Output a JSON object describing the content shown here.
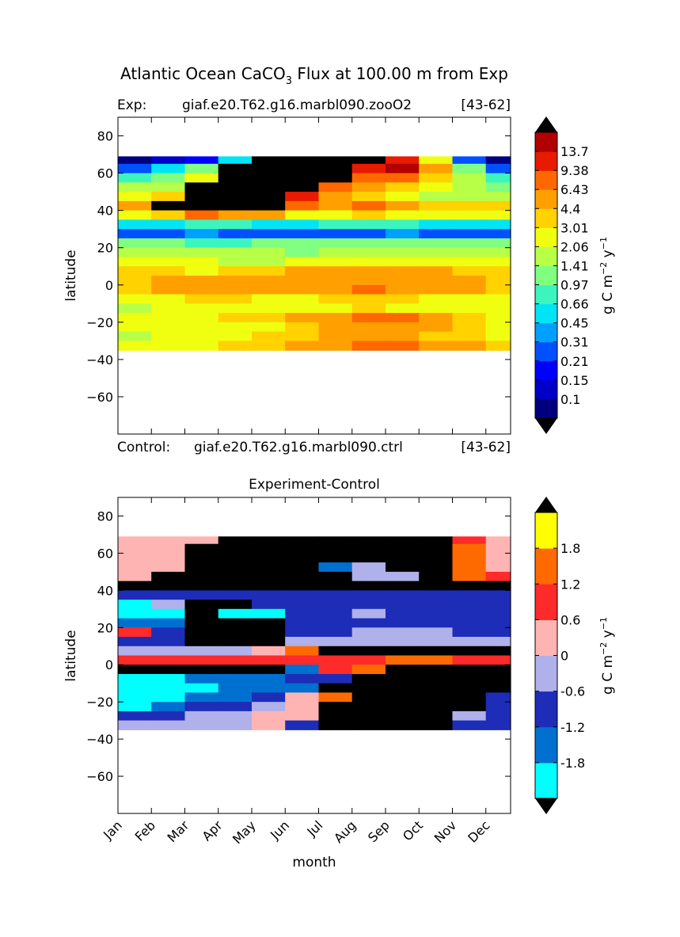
{
  "figure": {
    "title_prefix": "Atlantic Ocean CaCO",
    "title_sub": "3",
    "title_suffix": " Flux at 100.00 m from Exp"
  },
  "colors": {
    "land_mask": "#000000",
    "frame": "#000000",
    "top_scale": [
      "#00007f",
      "#0000c8",
      "#0000ff",
      "#0050ff",
      "#00a0ff",
      "#00e5f5",
      "#3cf5be",
      "#80ff80",
      "#b8ff48",
      "#f0ff10",
      "#ffd200",
      "#ffa000",
      "#ff6800",
      "#e81a00",
      "#b20000",
      "#7f0000"
    ],
    "diff_scale": [
      "#00ffff",
      "#0070d0",
      "#1d2db8",
      "#b0b0ea",
      "#ffb4b4",
      "#ff2a2a",
      "#ff6a00",
      "#ffff00"
    ]
  },
  "panel_top": {
    "left_label": "Exp:",
    "case_label": "giaf.e20.T62.g16.marbl090.zooO2",
    "years_label": "[43-62]",
    "ylabel": "latitude"
  },
  "panel_bottom": {
    "control_prefix": "Control:",
    "case_label": "giaf.e20.T62.g16.marbl090.ctrl",
    "years_label": "[43-62]",
    "title": "Experiment-Control",
    "ylabel": "latitude",
    "xlabel": "month"
  },
  "colorbar_top": {
    "unit_label": "g C m",
    "unit_exp1": "−2",
    "unit_mid": " y",
    "unit_exp2": "−1"
  },
  "colorbar_bottom": {
    "unit_label": "g C m",
    "unit_exp1": "−2",
    "unit_mid": " y",
    "unit_exp2": "−1"
  },
  "chart_data": [
    {
      "type": "heatmap",
      "title": "giaf.e20.T62.g16.marbl090.zooO2 [43-62]",
      "xlabel": "",
      "ylabel": "latitude",
      "x": [
        "Jan",
        "Feb",
        "Mar",
        "Apr",
        "May",
        "Jun",
        "Jul",
        "Aug",
        "Sep",
        "Oct",
        "Nov",
        "Dec"
      ],
      "ylim": [
        -80,
        90
      ],
      "yticks": [
        80,
        60,
        40,
        20,
        0,
        -20,
        -40,
        -60
      ],
      "data_lat_range": [
        -35,
        69
      ],
      "levels": [
        "0.1",
        "0.15",
        "0.21",
        "0.31",
        "0.45",
        "0.66",
        "0.97",
        "1.41",
        "2.06",
        "3.01",
        "4.4",
        "6.43",
        "9.38",
        "13.7"
      ],
      "colorbar_extend": "both",
      "bands": [
        {
          "lat": [
            65,
            69
          ],
          "values": [
            0.08,
            0.1,
            0.2,
            0.6,
            20,
            20,
            20,
            20,
            10,
            3,
            0.3,
            0.08
          ]
        },
        {
          "lat": [
            60,
            65
          ],
          "values": [
            0.3,
            0.6,
            1.2,
            20,
            20,
            20,
            20,
            12,
            14,
            5,
            1,
            0.3
          ]
        },
        {
          "lat": [
            55,
            60
          ],
          "values": [
            0.8,
            1.2,
            3,
            20,
            20,
            20,
            20,
            8,
            9,
            4,
            1.5,
            0.7
          ]
        },
        {
          "lat": [
            50,
            55
          ],
          "values": [
            1.5,
            2,
            20,
            20,
            20,
            20,
            9,
            6,
            4,
            2.5,
            1.5,
            1.2
          ]
        },
        {
          "lat": [
            45,
            50
          ],
          "values": [
            2.5,
            4,
            20,
            20,
            20,
            12,
            6,
            4,
            3,
            2,
            2,
            2
          ]
        },
        {
          "lat": [
            40,
            45
          ],
          "values": [
            5,
            20,
            20,
            20,
            20,
            8,
            5,
            7,
            6,
            4,
            4,
            4
          ]
        },
        {
          "lat": [
            35,
            40
          ],
          "values": [
            2.5,
            4,
            8,
            6,
            5,
            3,
            3,
            3.5,
            3,
            3,
            3,
            3
          ]
        },
        {
          "lat": [
            30,
            35
          ],
          "values": [
            0.6,
            0.6,
            0.7,
            0.7,
            0.6,
            0.6,
            0.7,
            0.7,
            0.7,
            0.6,
            0.6,
            0.6
          ]
        },
        {
          "lat": [
            25,
            30
          ],
          "values": [
            0.3,
            0.3,
            0.35,
            0.3,
            0.3,
            0.3,
            0.3,
            0.3,
            0.35,
            0.3,
            0.3,
            0.3
          ]
        },
        {
          "lat": [
            20,
            25
          ],
          "values": [
            1,
            1,
            0.8,
            0.9,
            1,
            1,
            1.2,
            1.3,
            1,
            1,
            1,
            1.1
          ]
        },
        {
          "lat": [
            15,
            20
          ],
          "values": [
            1.8,
            2,
            1.5,
            1.5,
            1.5,
            1.4,
            1.8,
            2,
            1.8,
            1.6,
            1.5,
            1.6
          ]
        },
        {
          "lat": [
            10,
            15
          ],
          "values": [
            2.5,
            2.8,
            2.2,
            2,
            2,
            2.3,
            2.5,
            2.7,
            2.6,
            2.4,
            2.3,
            2.4
          ]
        },
        {
          "lat": [
            5,
            10
          ],
          "values": [
            3.5,
            3.2,
            3,
            3.5,
            4,
            4.5,
            5,
            5.5,
            5,
            4.5,
            4,
            3.8
          ]
        },
        {
          "lat": [
            0,
            5
          ],
          "values": [
            4,
            4.5,
            5,
            5.5,
            5,
            4.5,
            5,
            5.5,
            5,
            5,
            4.5,
            4
          ]
        },
        {
          "lat": [
            -5,
            0
          ],
          "values": [
            4,
            4.5,
            5,
            5,
            4.5,
            5,
            6,
            7,
            6,
            5,
            4.5,
            4
          ]
        },
        {
          "lat": [
            -10,
            -5
          ],
          "values": [
            2.5,
            3,
            3.5,
            3.5,
            3,
            3,
            3.2,
            3.5,
            3.2,
            3,
            2.8,
            2.6
          ]
        },
        {
          "lat": [
            -15,
            -10
          ],
          "values": [
            2,
            2.2,
            2.5,
            2.5,
            2.2,
            2.5,
            3,
            3.2,
            3,
            2.6,
            2.4,
            2.2
          ]
        },
        {
          "lat": [
            -20,
            -15
          ],
          "values": [
            2.5,
            3,
            3,
            3.5,
            3.5,
            4.5,
            6,
            7,
            6.5,
            5,
            4,
            3
          ]
        },
        {
          "lat": [
            -25,
            -20
          ],
          "values": [
            2.2,
            2.5,
            2.8,
            3,
            3,
            4,
            5,
            5.5,
            5,
            4.5,
            3.5,
            2.8
          ]
        },
        {
          "lat": [
            -30,
            -25
          ],
          "values": [
            2,
            2.2,
            2.5,
            3,
            3.5,
            4,
            4.5,
            5,
            4.5,
            4,
            3.5,
            3
          ]
        },
        {
          "lat": [
            -35,
            -30
          ],
          "values": [
            2.5,
            2.8,
            3,
            3.5,
            4,
            5,
            6,
            7,
            7.5,
            6,
            5,
            4
          ]
        }
      ]
    },
    {
      "type": "heatmap",
      "title": "Experiment-Control",
      "xlabel": "month",
      "ylabel": "latitude",
      "x": [
        "Jan",
        "Feb",
        "Mar",
        "Apr",
        "May",
        "Jun",
        "Jul",
        "Aug",
        "Sep",
        "Oct",
        "Nov",
        "Dec"
      ],
      "ylim": [
        -80,
        90
      ],
      "yticks": [
        80,
        60,
        40,
        20,
        0,
        -20,
        -40,
        -60
      ],
      "data_lat_range": [
        -35,
        69
      ],
      "levels": [
        "-1.8",
        "-1.2",
        "-0.6",
        "0",
        "0.6",
        "1.2",
        "1.8"
      ],
      "colorbar_extend": "both",
      "bands": [
        {
          "lat": [
            65,
            69
          ],
          "values": [
            0.3,
            0.3,
            0.3,
            2.5,
            2.5,
            2.5,
            2.5,
            2.5,
            2.5,
            2.5,
            0.8,
            0.3
          ]
        },
        {
          "lat": [
            60,
            65
          ],
          "values": [
            0.3,
            0.3,
            2.5,
            2.5,
            2.5,
            2.5,
            2.5,
            2.5,
            2.5,
            2.5,
            1.2,
            0.3
          ]
        },
        {
          "lat": [
            55,
            60
          ],
          "values": [
            0.3,
            0.3,
            2.5,
            2.5,
            2.5,
            2.5,
            2.5,
            2.5,
            2.5,
            2.5,
            1.5,
            0.3
          ]
        },
        {
          "lat": [
            50,
            55
          ],
          "values": [
            0.3,
            0.5,
            2.5,
            2.5,
            2.5,
            2.5,
            -1.5,
            -0.3,
            2.5,
            2.5,
            1.5,
            0.4
          ]
        },
        {
          "lat": [
            45,
            50
          ],
          "values": [
            0.3,
            2.5,
            2.5,
            2.5,
            2.5,
            2.5,
            2.5,
            -0.3,
            -0.5,
            2.5,
            1.3,
            0.6
          ]
        },
        {
          "lat": [
            40,
            45
          ],
          "values": [
            2.5,
            2.5,
            2.5,
            2.5,
            2.5,
            2.5,
            2.5,
            2.5,
            2.5,
            2.5,
            2.5,
            2.5
          ]
        },
        {
          "lat": [
            35,
            40
          ],
          "values": [
            -1,
            -1,
            -0.9,
            -0.8,
            -0.8,
            -0.9,
            -1,
            -1,
            -1.1,
            -1,
            -1,
            -1
          ]
        },
        {
          "lat": [
            30,
            35
          ],
          "values": [
            -2.2,
            -0.6,
            2.5,
            2.5,
            -0.8,
            -1,
            -1,
            -0.9,
            -0.8,
            -0.8,
            -0.8,
            -0.7
          ]
        },
        {
          "lat": [
            25,
            30
          ],
          "values": [
            -2.2,
            -2.2,
            2.5,
            -2.2,
            -2.2,
            -0.8,
            -0.8,
            -0.6,
            -0.9,
            -0.8,
            -0.8,
            -0.8
          ]
        },
        {
          "lat": [
            20,
            25
          ],
          "values": [
            -1.5,
            -1.4,
            2.5,
            2.5,
            2.5,
            -0.9,
            -0.9,
            -1,
            -1,
            -1.1,
            -1,
            -1
          ]
        },
        {
          "lat": [
            15,
            20
          ],
          "values": [
            0.8,
            -1.2,
            2.5,
            2.5,
            2.5,
            -0.8,
            -0.7,
            -0.4,
            -0.4,
            -0.6,
            -0.7,
            -0.7
          ]
        },
        {
          "lat": [
            10,
            15
          ],
          "values": [
            -1,
            -1,
            2.5,
            2.5,
            2.5,
            -0.6,
            -0.4,
            -0.4,
            -0.5,
            -0.5,
            -0.6,
            -0.5
          ]
        },
        {
          "lat": [
            5,
            10
          ],
          "values": [
            -0.4,
            -0.4,
            -0.4,
            -0.3,
            0.3,
            1.5,
            2.5,
            2.5,
            2.5,
            2.5,
            2.5,
            2.5
          ]
        },
        {
          "lat": [
            0,
            5
          ],
          "values": [
            0.8,
            0.8,
            0.8,
            0.8,
            0.8,
            0.9,
            1,
            1,
            1.2,
            1.2,
            1.1,
            1
          ]
        },
        {
          "lat": [
            -5,
            0
          ],
          "values": [
            2.5,
            2.5,
            2.5,
            2.5,
            2.5,
            -1.5,
            0.8,
            1.5,
            2.5,
            2.5,
            2.5,
            2.5
          ]
        },
        {
          "lat": [
            -10,
            -5
          ],
          "values": [
            -2.2,
            -2.2,
            -1.4,
            -1.4,
            -1.4,
            -1.2,
            -1.2,
            2.5,
            2.5,
            2.5,
            2.5,
            2.5
          ]
        },
        {
          "lat": [
            -15,
            -10
          ],
          "values": [
            -2.2,
            -2.2,
            -2.2,
            -1.5,
            -1.5,
            -1.3,
            2.5,
            2.5,
            2.5,
            2.5,
            2.5,
            2.5
          ]
        },
        {
          "lat": [
            -20,
            -15
          ],
          "values": [
            -2.2,
            -2.2,
            -1.5,
            -1.5,
            -0.9,
            0.5,
            1.5,
            2.5,
            2.5,
            2.5,
            2.5,
            -0.9
          ]
        },
        {
          "lat": [
            -25,
            -20
          ],
          "values": [
            -2.2,
            -1.5,
            -1.1,
            -0.9,
            -0.5,
            0.3,
            2.5,
            2.5,
            2.5,
            2.5,
            2.5,
            -1
          ]
        },
        {
          "lat": [
            -30,
            -25
          ],
          "values": [
            -0.9,
            -0.7,
            -0.5,
            -0.4,
            0.2,
            0.5,
            2.5,
            2.5,
            2.5,
            2.5,
            -0.5,
            -0.9
          ]
        },
        {
          "lat": [
            -35,
            -30
          ],
          "values": [
            -0.3,
            -0.3,
            -0.5,
            -0.3,
            0.3,
            -0.9,
            2.5,
            2.5,
            2.5,
            2.5,
            -1,
            -1.2
          ]
        }
      ]
    }
  ]
}
